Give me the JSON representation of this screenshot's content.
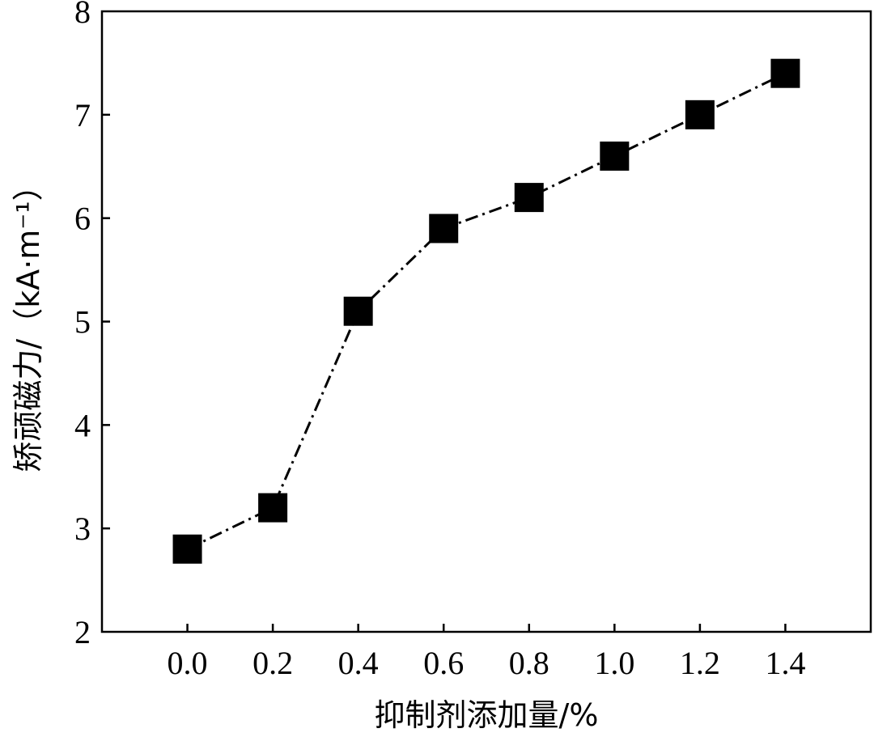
{
  "chart_data": {
    "type": "line",
    "title": "",
    "xlabel": "抑制剂添加量/%",
    "ylabel": "矫顽磁力/（kA·m⁻¹）",
    "x": [
      0.0,
      0.2,
      0.4,
      0.6,
      0.8,
      1.0,
      1.2,
      1.4
    ],
    "x_tick_labels": [
      "0.0",
      "0.2",
      "0.4",
      "0.6",
      "0.8",
      "1.0",
      "1.2",
      "1.4"
    ],
    "xlim": [
      -0.2,
      1.6
    ],
    "ylim": [
      2,
      8
    ],
    "y_ticks": [
      2,
      3,
      4,
      5,
      6,
      7,
      8
    ],
    "series": [
      {
        "values": [
          2.8,
          3.2,
          5.1,
          5.9,
          6.2,
          6.6,
          7.0,
          7.4
        ],
        "marker": "square",
        "line_style": "dash-dot",
        "color": "#000000"
      }
    ],
    "grid": false,
    "legend": "none"
  }
}
